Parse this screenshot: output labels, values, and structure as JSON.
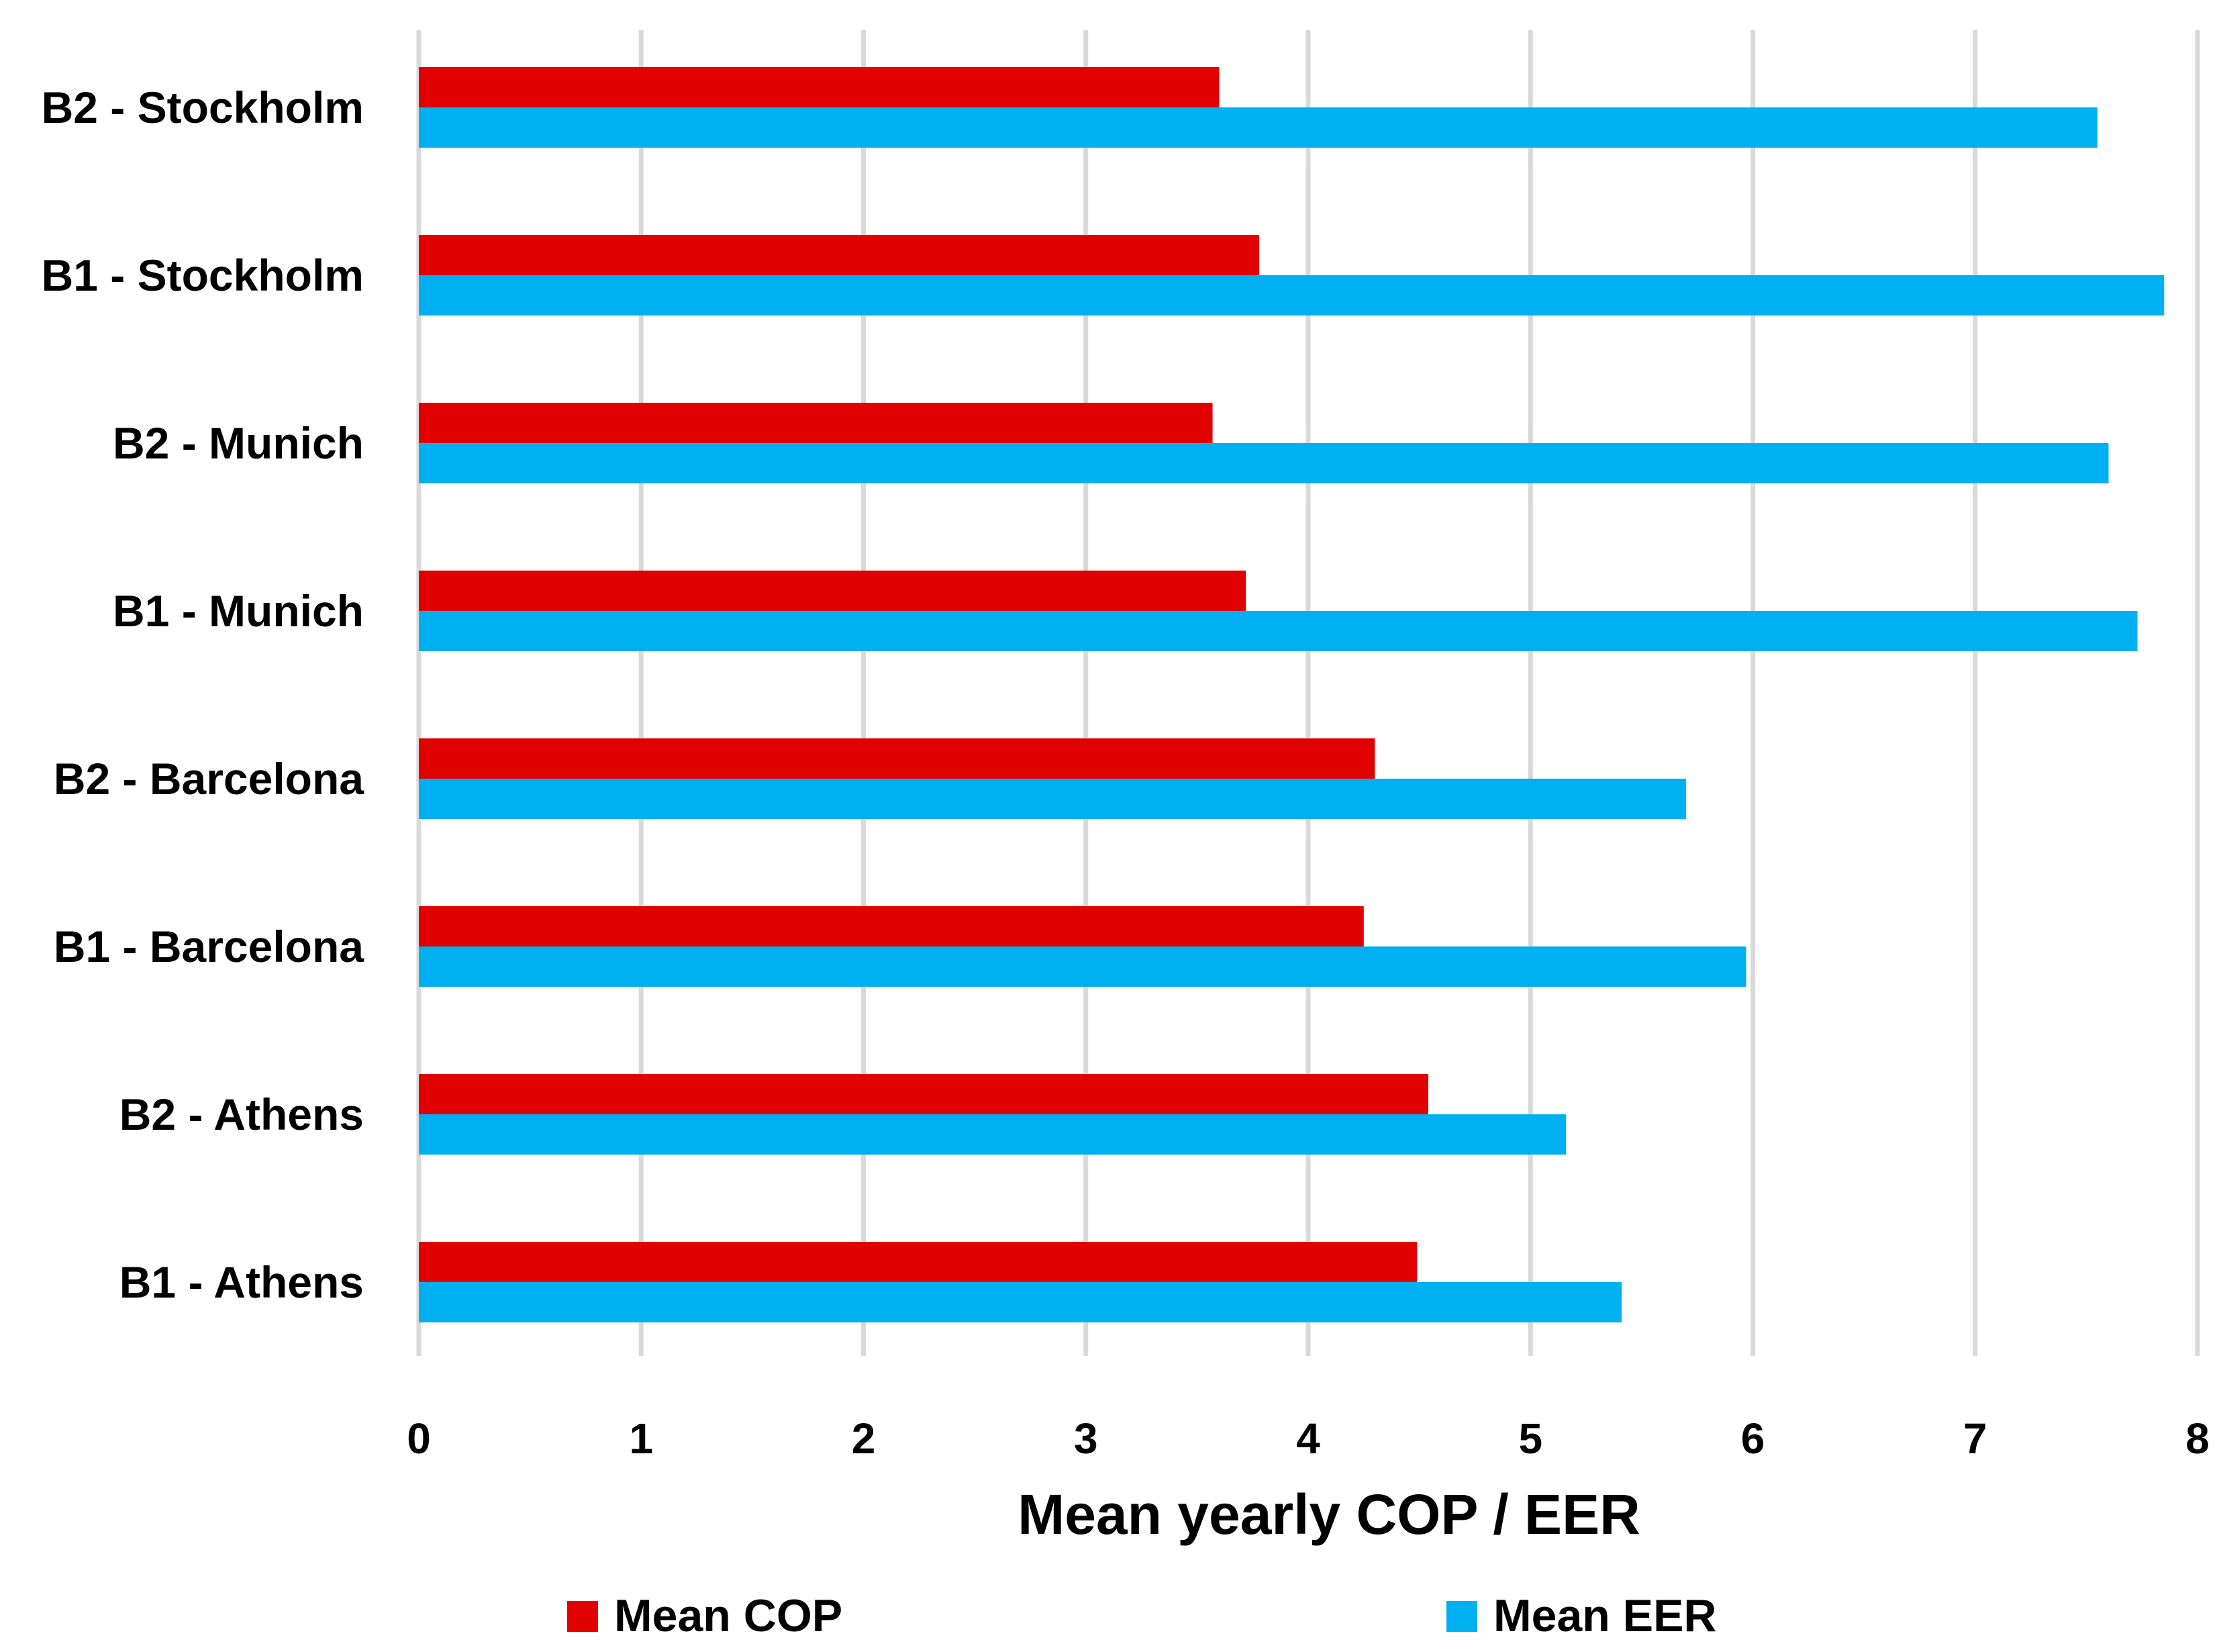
{
  "chart_data": {
    "type": "bar",
    "orientation": "horizontal",
    "categories": [
      "B2 - Stockholm",
      "B1 - Stockholm",
      "B2 - Munich",
      "B1 - Munich",
      "B2 - Barcelona",
      "B1 - Barcelona",
      "B2 - Athens",
      "B1 - Athens"
    ],
    "series": [
      {
        "name": "Mean COP",
        "color": "#e00000",
        "values": [
          3.6,
          3.78,
          3.57,
          3.72,
          4.3,
          4.25,
          4.54,
          4.49
        ]
      },
      {
        "name": "Mean EER",
        "color": "#00b0f0",
        "values": [
          7.55,
          7.85,
          7.6,
          7.73,
          5.7,
          5.97,
          5.16,
          5.41
        ]
      }
    ],
    "xlabel": "Mean yearly COP / EER",
    "ylabel": "",
    "xlim": [
      0,
      8
    ],
    "xticks": [
      "0",
      "1",
      "2",
      "3",
      "4",
      "5",
      "6",
      "7",
      "8"
    ],
    "grid": "vertical",
    "legend": "bottom"
  }
}
